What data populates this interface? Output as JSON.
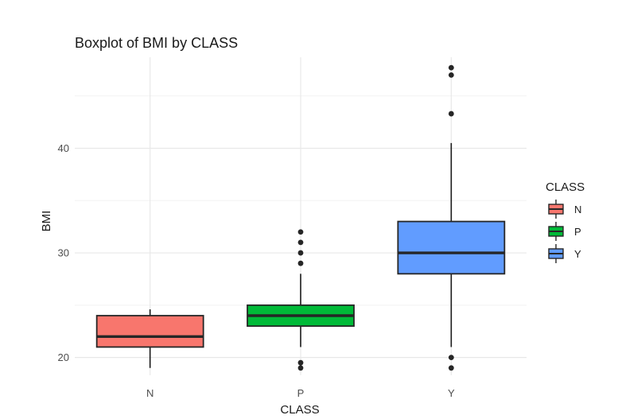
{
  "chart_data": {
    "type": "boxplot",
    "title": "Boxplot of BMI by CLASS",
    "xlabel": "CLASS",
    "ylabel": "BMI",
    "categories": [
      "N",
      "P",
      "Y"
    ],
    "ylim": [
      18.3,
      48.7
    ],
    "yticks": [
      20,
      30,
      40
    ],
    "grid": true,
    "legend": {
      "title": "CLASS",
      "position": "right",
      "entries": [
        "N",
        "P",
        "Y"
      ]
    },
    "colors": {
      "N": "#F8766D",
      "P": "#00BA38",
      "Y": "#619CFF"
    },
    "series": [
      {
        "category": "N",
        "whisker_low": 19,
        "q1": 21,
        "median": 22,
        "q3": 24,
        "whisker_high": 24.6,
        "outliers": []
      },
      {
        "category": "P",
        "whisker_low": 21,
        "q1": 23,
        "median": 24,
        "q3": 25,
        "whisker_high": 28,
        "outliers": [
          19,
          19.5,
          29,
          30,
          31,
          32
        ]
      },
      {
        "category": "Y",
        "whisker_low": 21,
        "q1": 28,
        "median": 30,
        "q3": 33,
        "whisker_high": 40.5,
        "outliers": [
          19,
          20,
          43.3,
          47,
          47.7
        ]
      }
    ]
  }
}
